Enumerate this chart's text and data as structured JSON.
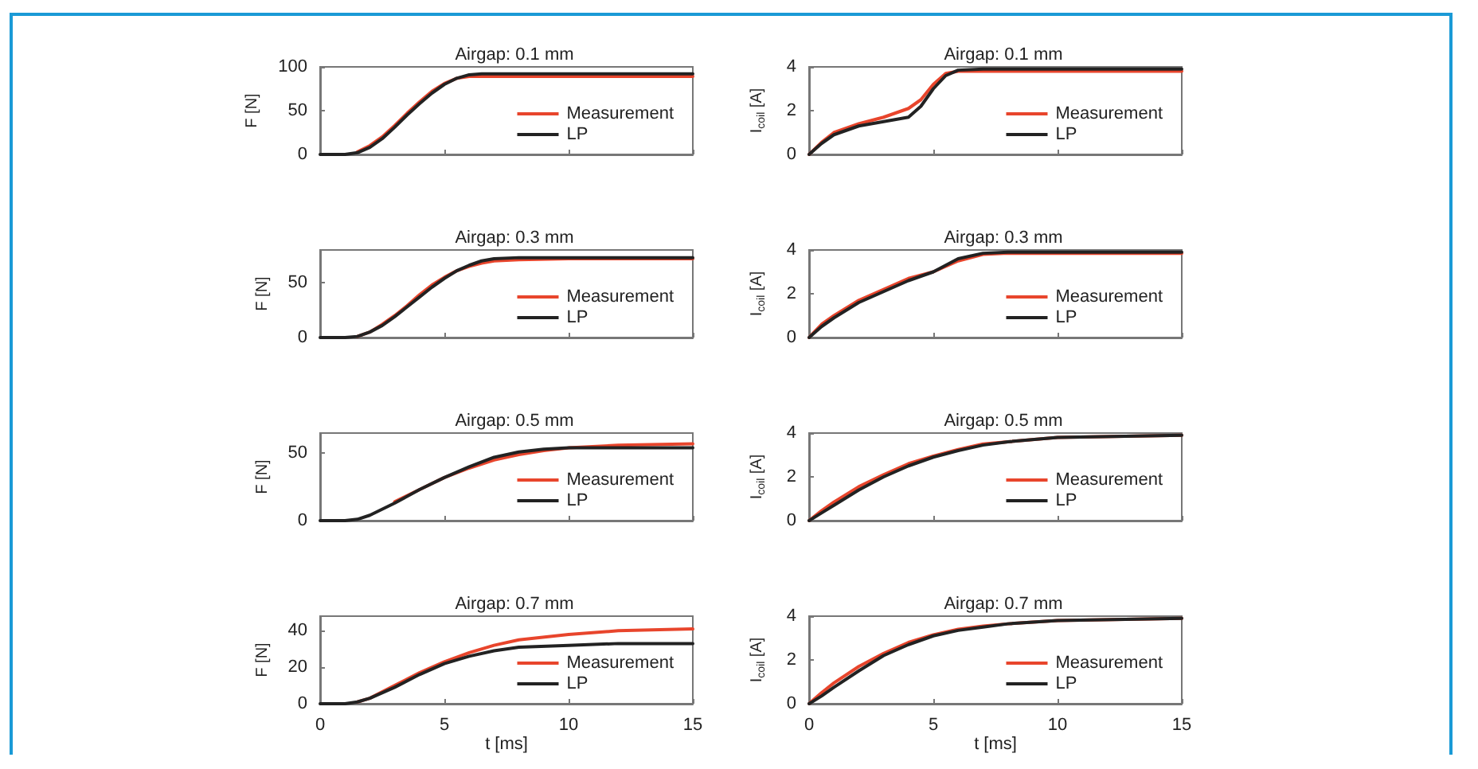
{
  "chart_data": [
    {
      "type": "line",
      "title": "Airgap: 0.1 mm",
      "ylabel": "F [N]",
      "xlim": [
        0,
        15
      ],
      "xticks": [
        0,
        5,
        10,
        15
      ],
      "ylim": [
        0,
        100
      ],
      "yticks": [
        0,
        50,
        100
      ],
      "tick_labels": "y",
      "legend": "right",
      "marker": "none",
      "line_style": "solid",
      "series": [
        {
          "name": "Measurement",
          "color": "#e8452c",
          "x": [
            1.5,
            2,
            2.5,
            3,
            3.5,
            4,
            4.5,
            5,
            5.5,
            6,
            6.5,
            7,
            8,
            10,
            15
          ],
          "values": [
            3,
            10,
            20,
            33,
            47,
            60,
            72,
            81,
            87,
            89,
            89,
            89,
            89,
            89,
            89
          ]
        },
        {
          "name": "LP",
          "color": "#222222",
          "x": [
            0,
            1,
            1.5,
            2,
            2.5,
            3,
            3.5,
            4,
            4.5,
            5,
            5.5,
            6,
            6.5,
            7,
            8,
            10,
            15
          ],
          "values": [
            0,
            0,
            2,
            8,
            18,
            31,
            45,
            58,
            70,
            80,
            87,
            91,
            92,
            92,
            92,
            92,
            92
          ]
        }
      ]
    },
    {
      "type": "line",
      "title": "Airgap: 0.1 mm",
      "ylabel": "I$_{coil}$ [A]",
      "xlim": [
        0,
        15
      ],
      "xticks": [
        0,
        5,
        10,
        15
      ],
      "ylim": [
        0,
        4
      ],
      "yticks": [
        0,
        2,
        4
      ],
      "tick_labels": "y",
      "legend": "right",
      "marker": "none",
      "line_style": "solid",
      "series": [
        {
          "name": "Measurement",
          "color": "#e8452c",
          "x": [
            0,
            0.5,
            1,
            2,
            3,
            4,
            4.5,
            5,
            5.5,
            6,
            7,
            8,
            15
          ],
          "values": [
            0,
            0.55,
            1.0,
            1.4,
            1.7,
            2.1,
            2.5,
            3.2,
            3.7,
            3.8,
            3.8,
            3.8,
            3.8
          ]
        },
        {
          "name": "LP",
          "color": "#222222",
          "x": [
            0,
            0.5,
            1,
            2,
            3,
            4,
            4.5,
            5,
            5.5,
            6,
            7,
            8,
            15
          ],
          "values": [
            0,
            0.5,
            0.9,
            1.3,
            1.5,
            1.7,
            2.2,
            3.0,
            3.6,
            3.85,
            3.9,
            3.9,
            3.9
          ]
        }
      ]
    },
    {
      "type": "line",
      "title": "Airgap: 0.3 mm",
      "ylabel": "F [N]",
      "xlim": [
        0,
        15
      ],
      "xticks": [
        0,
        5,
        10,
        15
      ],
      "ylim": [
        0,
        80
      ],
      "yticks": [
        0,
        50
      ],
      "tick_labels": "y",
      "legend": "right",
      "marker": "none",
      "line_style": "solid",
      "series": [
        {
          "name": "Measurement",
          "color": "#e8452c",
          "x": [
            1.5,
            2,
            2.5,
            3,
            3.5,
            4,
            4.5,
            5,
            5.5,
            6,
            6.5,
            7,
            8,
            10,
            15
          ],
          "values": [
            1,
            5,
            12,
            20,
            29,
            39,
            48,
            55,
            61,
            65,
            68,
            70,
            71,
            72,
            72
          ]
        },
        {
          "name": "LP",
          "color": "#222222",
          "x": [
            0,
            1,
            1.5,
            2,
            2.5,
            3,
            3.5,
            4,
            4.5,
            5,
            5.5,
            6,
            6.5,
            7,
            8,
            10,
            15
          ],
          "values": [
            0,
            0,
            1,
            5,
            11,
            19,
            28,
            37,
            46,
            54,
            61,
            66,
            70,
            72,
            73,
            73,
            73
          ]
        }
      ]
    },
    {
      "type": "line",
      "title": "Airgap: 0.3 mm",
      "ylabel": "I$_{coil}$ [A]",
      "xlim": [
        0,
        15
      ],
      "xticks": [
        0,
        5,
        10,
        15
      ],
      "ylim": [
        0,
        4
      ],
      "yticks": [
        0,
        2,
        4
      ],
      "tick_labels": "y",
      "legend": "right",
      "marker": "none",
      "line_style": "solid",
      "series": [
        {
          "name": "Measurement",
          "color": "#e8452c",
          "x": [
            0,
            0.5,
            1,
            2,
            3,
            4,
            5,
            6,
            7,
            8,
            15
          ],
          "values": [
            0,
            0.6,
            1.0,
            1.7,
            2.2,
            2.7,
            3.0,
            3.5,
            3.8,
            3.85,
            3.85
          ]
        },
        {
          "name": "LP",
          "color": "#222222",
          "x": [
            0,
            0.5,
            1,
            2,
            3,
            4,
            5,
            6,
            7,
            8,
            15
          ],
          "values": [
            0,
            0.5,
            0.9,
            1.6,
            2.1,
            2.6,
            3.0,
            3.6,
            3.85,
            3.9,
            3.9
          ]
        }
      ]
    },
    {
      "type": "line",
      "title": "Airgap: 0.5 mm",
      "ylabel": "F [N]",
      "xlim": [
        0,
        15
      ],
      "xticks": [
        0,
        5,
        10,
        15
      ],
      "ylim": [
        0,
        65
      ],
      "yticks": [
        0,
        50
      ],
      "tick_labels": "y",
      "legend": "right",
      "marker": "none",
      "line_style": "solid",
      "series": [
        {
          "name": "Measurement",
          "color": "#e8452c",
          "x": [
            3,
            4,
            5,
            6,
            7,
            8,
            9,
            10,
            12,
            15
          ],
          "values": [
            14,
            23,
            32,
            39,
            45,
            49,
            52,
            54,
            56,
            57
          ]
        },
        {
          "name": "LP",
          "color": "#222222",
          "x": [
            0,
            1,
            1.5,
            2,
            3,
            4,
            5,
            6,
            7,
            8,
            9,
            10,
            12,
            15
          ],
          "values": [
            0,
            0,
            1,
            4,
            13,
            23,
            32,
            40,
            47,
            51,
            53,
            54,
            54,
            54
          ]
        }
      ]
    },
    {
      "type": "line",
      "title": "Airgap: 0.5 mm",
      "ylabel": "I$_{coil}$ [A]",
      "xlim": [
        0,
        15
      ],
      "xticks": [
        0,
        5,
        10,
        15
      ],
      "ylim": [
        0,
        4
      ],
      "yticks": [
        0,
        2,
        4
      ],
      "tick_labels": "y",
      "legend": "right",
      "marker": "none",
      "line_style": "solid",
      "series": [
        {
          "name": "Measurement",
          "color": "#e8452c",
          "x": [
            0,
            0.5,
            1,
            2,
            3,
            4,
            5,
            6,
            7,
            8,
            10,
            15
          ],
          "values": [
            0,
            0.45,
            0.85,
            1.55,
            2.1,
            2.6,
            2.95,
            3.25,
            3.5,
            3.6,
            3.8,
            3.9
          ]
        },
        {
          "name": "LP",
          "color": "#222222",
          "x": [
            0,
            0.5,
            1,
            2,
            3,
            4,
            5,
            6,
            7,
            8,
            10,
            15
          ],
          "values": [
            0,
            0.35,
            0.7,
            1.4,
            2.0,
            2.5,
            2.9,
            3.2,
            3.45,
            3.6,
            3.8,
            3.9
          ]
        }
      ]
    },
    {
      "type": "line",
      "title": "Airgap: 0.7 mm",
      "xlabel": "t [ms]",
      "ylabel": "F [N]",
      "xlim": [
        0,
        15
      ],
      "xticks": [
        0,
        5,
        10,
        15
      ],
      "ylim": [
        0,
        48
      ],
      "yticks": [
        0,
        20,
        40
      ],
      "legend": "right",
      "marker": "none",
      "line_style": "solid",
      "series": [
        {
          "name": "Measurement",
          "color": "#e8452c",
          "x": [
            1.5,
            2,
            3,
            4,
            5,
            6,
            7,
            8,
            10,
            12,
            15
          ],
          "values": [
            1,
            3,
            10,
            17,
            23,
            28,
            32,
            35,
            38,
            40,
            41
          ]
        },
        {
          "name": "LP",
          "color": "#222222",
          "x": [
            0,
            1,
            1.5,
            2,
            3,
            4,
            5,
            6,
            7,
            8,
            10,
            12,
            15
          ],
          "values": [
            0,
            0,
            1,
            3,
            9,
            16,
            22,
            26,
            29,
            31,
            32,
            33,
            33
          ]
        }
      ]
    },
    {
      "type": "line",
      "title": "Airgap: 0.7 mm",
      "xlabel": "t [ms]",
      "ylabel": "I$_{coil}$ [A]",
      "xlim": [
        0,
        15
      ],
      "xticks": [
        0,
        5,
        10,
        15
      ],
      "ylim": [
        0,
        4
      ],
      "yticks": [
        0,
        2,
        4
      ],
      "legend": "right",
      "marker": "none",
      "line_style": "solid",
      "series": [
        {
          "name": "Measurement",
          "color": "#e8452c",
          "x": [
            0,
            0.5,
            1,
            2,
            3,
            4,
            5,
            6,
            7,
            8,
            10,
            15
          ],
          "values": [
            0,
            0.5,
            0.95,
            1.7,
            2.3,
            2.8,
            3.15,
            3.4,
            3.55,
            3.65,
            3.8,
            3.9
          ]
        },
        {
          "name": "LP",
          "color": "#222222",
          "x": [
            0,
            0.5,
            1,
            2,
            3,
            4,
            5,
            6,
            7,
            8,
            10,
            15
          ],
          "values": [
            0,
            0.35,
            0.75,
            1.5,
            2.2,
            2.7,
            3.1,
            3.35,
            3.5,
            3.65,
            3.8,
            3.9
          ]
        }
      ]
    }
  ]
}
